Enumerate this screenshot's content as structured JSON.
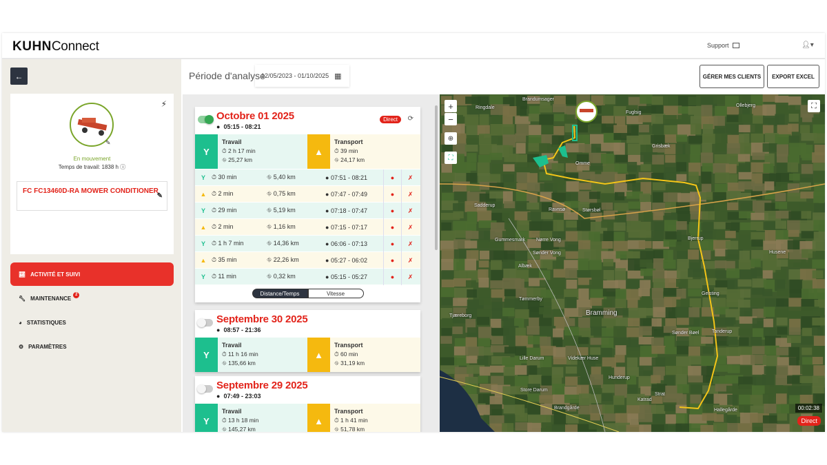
{
  "header": {
    "brand_bold": "KUHN",
    "brand_light": "Connect",
    "support": "Support",
    "icons": {
      "support": "envelope-icon",
      "user": "user-icon"
    }
  },
  "sidebar": {
    "status": "En mouvement",
    "work_time": "Temps de travail: 1838 h",
    "machine_name": "FC FC13460D-RA MOWER CONDITIONER",
    "nav": [
      {
        "label": "Activité et suivi",
        "icon": "chart-line-icon",
        "active": true
      },
      {
        "label": "Maintenance",
        "icon": "wrench-icon",
        "badge": "2"
      },
      {
        "label": "Statistiques",
        "icon": "pie-chart-icon"
      },
      {
        "label": "Paramètres",
        "icon": "gear-icon"
      }
    ]
  },
  "toolbar": {
    "period_label": "Période d'analyse",
    "date_range": "12/05/2023 - 01/10/2025",
    "manage_clients": "GÉRER MES CLIENTS",
    "export_excel": "EXPORT EXCEL"
  },
  "colors": {
    "accent": "#e2231a",
    "work": "#1dbf8e",
    "transport": "#f5b90f",
    "route": "#f5c518"
  },
  "days": [
    {
      "title": "Octobre 01 2025",
      "time": "05:15 - 08:21",
      "enabled": true,
      "badge": "Direct",
      "work": {
        "label": "Travail",
        "duration": "2 h 17 min",
        "distance": "25,27 km"
      },
      "transport": {
        "label": "Transport",
        "duration": "39 min",
        "distance": "24,17 km"
      },
      "segments": [
        {
          "type": "work",
          "duration": "30 min",
          "distance": "5,40 km",
          "time": "07:51 - 08:21"
        },
        {
          "type": "transport",
          "duration": "2 min",
          "distance": "0,75 km",
          "time": "07:47 - 07:49"
        },
        {
          "type": "work",
          "duration": "29 min",
          "distance": "5,19 km",
          "time": "07:18 - 07:47"
        },
        {
          "type": "transport",
          "duration": "2 min",
          "distance": "1,16 km",
          "time": "07:15 - 07:17"
        },
        {
          "type": "work",
          "duration": "1 h 7 min",
          "distance": "14,36 km",
          "time": "06:06 - 07:13"
        },
        {
          "type": "transport",
          "duration": "35 min",
          "distance": "22,26 km",
          "time": "05:27 - 06:02"
        },
        {
          "type": "work",
          "duration": "11 min",
          "distance": "0,32 km",
          "time": "05:15 - 05:27"
        }
      ],
      "view_toggle": [
        "Distance/Temps",
        "Vitesse"
      ]
    },
    {
      "title": "Septembre 30 2025",
      "time": "08:57 - 21:36",
      "enabled": false,
      "work": {
        "label": "Travail",
        "duration": "11 h 16 min",
        "distance": "135,66 km"
      },
      "transport": {
        "label": "Transport",
        "duration": "60 min",
        "distance": "31,19 km"
      }
    },
    {
      "title": "Septembre 29 2025",
      "time": "07:49 - 23:03",
      "enabled": false,
      "work": {
        "label": "Travail",
        "duration": "13 h 18 min",
        "distance": "145,27 km"
      },
      "transport": {
        "label": "Transport",
        "duration": "1 h 41 min",
        "distance": "51,78 km"
      }
    }
  ],
  "map": {
    "timer": "00:02:38",
    "badge": "Direct",
    "places": [
      "Brandumsager",
      "Ringdale",
      "Fuglsig",
      "Grisbæk",
      "Omme",
      "Ollebjerg",
      "Sadderup",
      "Ravnsø",
      "Størsbøl",
      "Bjerrup",
      "Gummesmark",
      "Nørre Vong",
      "Sønder Vong",
      "Husene",
      "Albæk",
      "Tømmerby",
      "Bramming",
      "Tjæreborg",
      "Gelsting",
      "Sønder Bøel",
      "Tanderup",
      "Lille Darum",
      "Videkær Huse",
      "Hunderup",
      "Store Darum",
      "Strat",
      "Katrad",
      "Brandgårde",
      "Hallegårde"
    ]
  }
}
